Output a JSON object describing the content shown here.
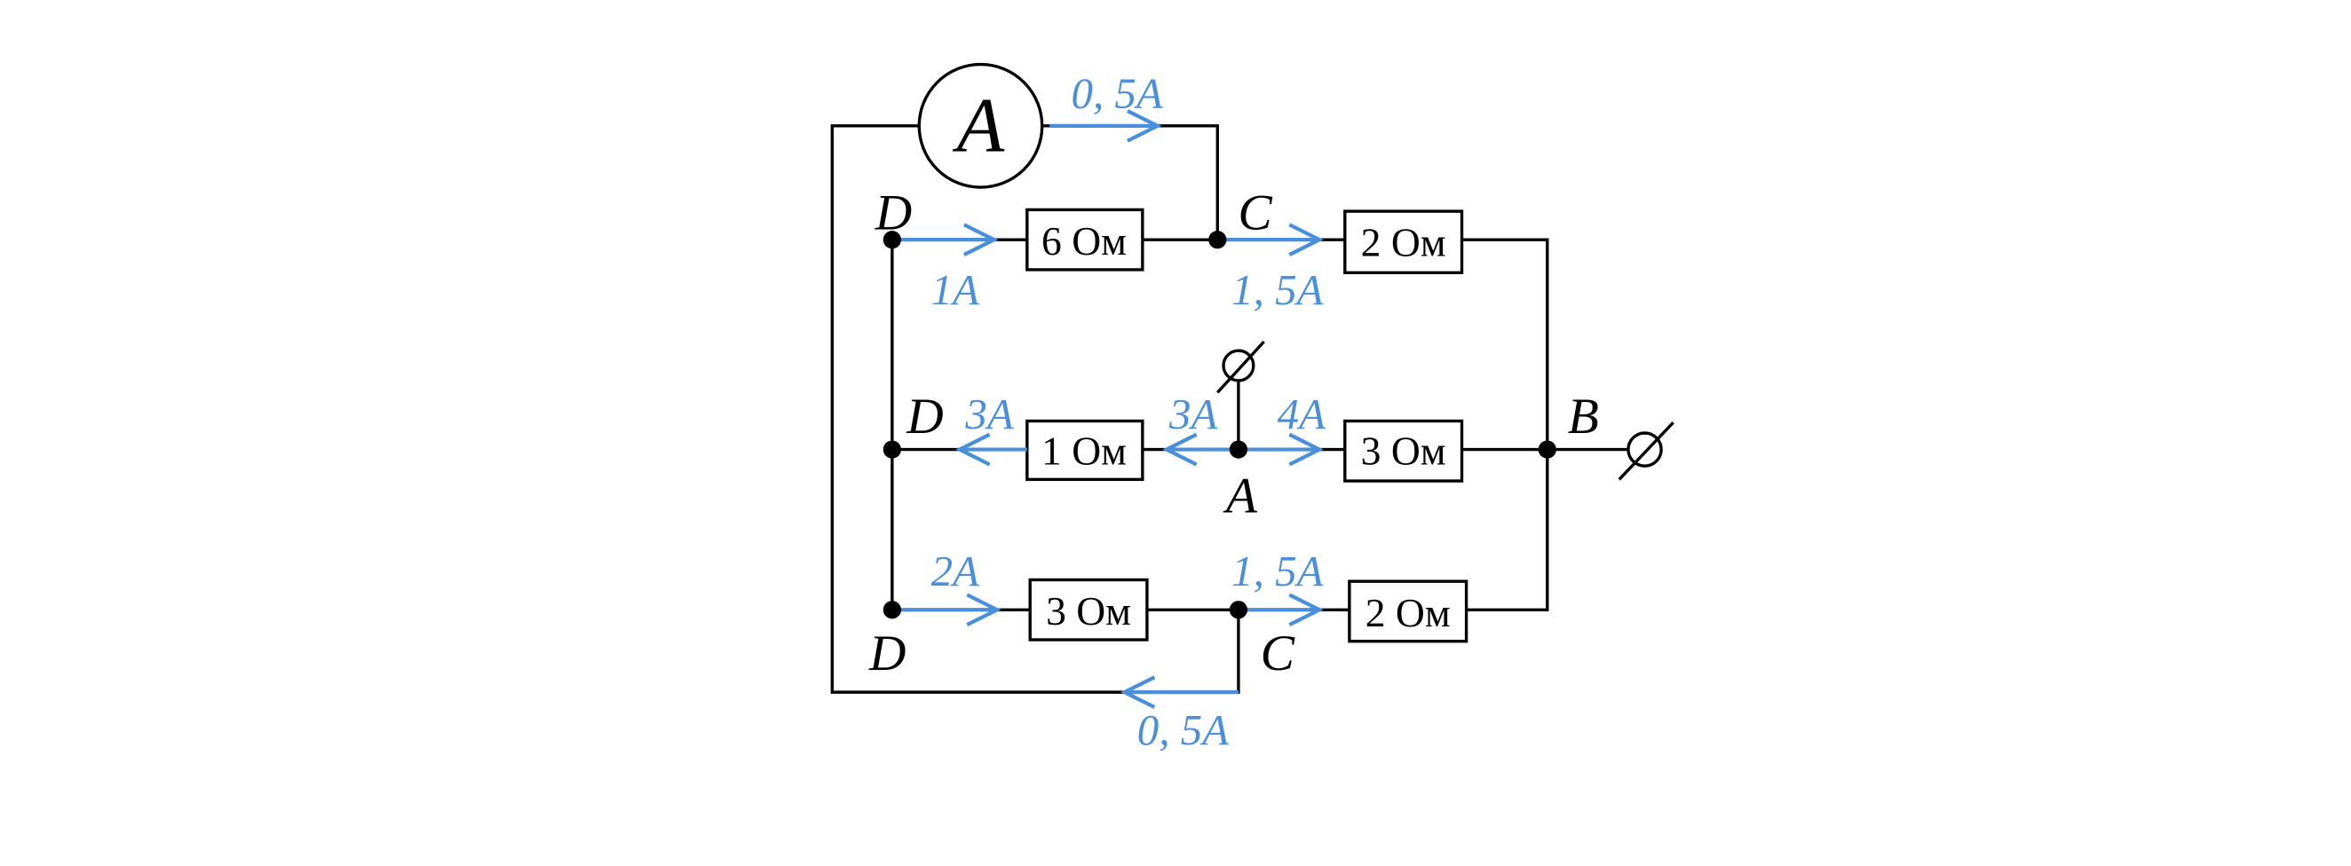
{
  "ammeter": {
    "label": "A"
  },
  "nodes": [
    {
      "label": "D"
    },
    {
      "label": "C"
    },
    {
      "label": "D"
    },
    {
      "label": "A"
    },
    {
      "label": "B"
    },
    {
      "label": "D"
    },
    {
      "label": "C"
    }
  ],
  "resistors": [
    {
      "label": "6 Ом"
    },
    {
      "label": "2 Ом"
    },
    {
      "label": "1 Ом"
    },
    {
      "label": "3 Ом"
    },
    {
      "label": "3 Ом"
    },
    {
      "label": "2 Ом"
    }
  ],
  "currents": [
    {
      "label": "0, 5A"
    },
    {
      "label": "1A"
    },
    {
      "label": "1, 5A"
    },
    {
      "label": "3A"
    },
    {
      "label": "3A"
    },
    {
      "label": "4A"
    },
    {
      "label": "2A"
    },
    {
      "label": "1, 5A"
    },
    {
      "label": "0, 5A"
    }
  ]
}
